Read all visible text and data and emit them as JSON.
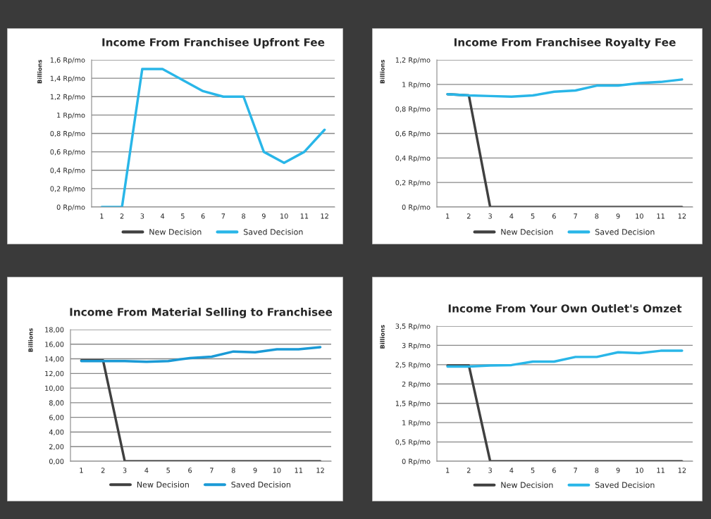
{
  "chart_data": [
    {
      "type": "line",
      "title": "Income From Franchisee Upfront Fee",
      "ylabel": "Billions",
      "categories": [
        "1",
        "2",
        "3",
        "4",
        "5",
        "6",
        "7",
        "8",
        "9",
        "10",
        "11",
        "12"
      ],
      "series": [
        {
          "name": "New Decision",
          "color": "#404040",
          "values": [
            null,
            null,
            null,
            null,
            null,
            null,
            null,
            null,
            null,
            null,
            null,
            null
          ]
        },
        {
          "name": "Saved Decision",
          "color": "#29b6e8",
          "values": [
            0,
            0,
            1.5,
            1.5,
            1.38,
            1.26,
            1.2,
            1.2,
            0.6,
            0.48,
            0.6,
            0.84
          ]
        }
      ],
      "ylim": [
        0,
        1.6
      ],
      "yticks": [
        {
          "value": 0,
          "label": "0 Rp/mo"
        },
        {
          "value": 0.2,
          "label": "0,2 Rp/mo"
        },
        {
          "value": 0.4,
          "label": "0,4 Rp/mo"
        },
        {
          "value": 0.6,
          "label": "0,6 Rp/mo"
        },
        {
          "value": 0.8,
          "label": "0,8 Rp/mo"
        },
        {
          "value": 1,
          "label": "1 Rp/mo"
        },
        {
          "value": 1.2,
          "label": "1,2 Rp/mo"
        },
        {
          "value": 1.4,
          "label": "1,4 Rp/mo"
        },
        {
          "value": 1.6,
          "label": "1,6 Rp/mo"
        }
      ],
      "grid": "y",
      "legend": "bottom"
    },
    {
      "type": "line",
      "title": "Income From Franchisee Royalty Fee",
      "ylabel": "Billions",
      "categories": [
        "1",
        "2",
        "3",
        "4",
        "5",
        "6",
        "7",
        "8",
        "9",
        "10",
        "11",
        "12"
      ],
      "series": [
        {
          "name": "New Decision",
          "color": "#404040",
          "values": [
            0.92,
            0.91,
            0,
            0,
            0,
            0,
            0,
            0,
            0,
            0,
            0,
            0
          ]
        },
        {
          "name": "Saved Decision",
          "color": "#29b6e8",
          "values": [
            0.92,
            0.91,
            0.905,
            0.9,
            0.91,
            0.94,
            0.95,
            0.99,
            0.99,
            1.01,
            1.02,
            1.04
          ]
        }
      ],
      "ylim": [
        0,
        1.2
      ],
      "yticks": [
        {
          "value": 0,
          "label": "0 Rp/mo"
        },
        {
          "value": 0.2,
          "label": "0,2 Rp/mo"
        },
        {
          "value": 0.4,
          "label": "0,4 Rp/mo"
        },
        {
          "value": 0.6,
          "label": "0,6 Rp/mo"
        },
        {
          "value": 0.8,
          "label": "0,8 Rp/mo"
        },
        {
          "value": 1,
          "label": "1 Rp/mo"
        },
        {
          "value": 1.2,
          "label": "1,2 Rp/mo"
        }
      ],
      "grid": "y",
      "legend": "bottom"
    },
    {
      "type": "line",
      "title": "Income From Material Selling to Franchisee",
      "ylabel": "Billions",
      "categories": [
        "1",
        "2",
        "3",
        "4",
        "5",
        "6",
        "7",
        "8",
        "9",
        "10",
        "11",
        "12"
      ],
      "series": [
        {
          "name": "New Decision",
          "color": "#404040",
          "values": [
            13.8,
            13.8,
            0,
            0,
            0,
            0,
            0,
            0,
            0,
            0,
            0,
            0
          ]
        },
        {
          "name": "Saved Decision",
          "color": "#1a9ad6",
          "values": [
            13.7,
            13.7,
            13.7,
            13.6,
            13.7,
            14.1,
            14.3,
            15.0,
            14.9,
            15.3,
            15.3,
            15.6
          ]
        }
      ],
      "ylim": [
        0,
        18
      ],
      "yticks": [
        {
          "value": 0,
          "label": "0,00"
        },
        {
          "value": 2,
          "label": "2,00"
        },
        {
          "value": 4,
          "label": "4,00"
        },
        {
          "value": 6,
          "label": "6,00"
        },
        {
          "value": 8,
          "label": "8,00"
        },
        {
          "value": 10,
          "label": "10,00"
        },
        {
          "value": 12,
          "label": "12,00"
        },
        {
          "value": 14,
          "label": "14,00"
        },
        {
          "value": 16,
          "label": "16,00"
        },
        {
          "value": 18,
          "label": "18,00"
        }
      ],
      "grid": "y",
      "legend": "bottom"
    },
    {
      "type": "line",
      "title": "Income From Your Own Outlet's Omzet",
      "ylabel": "Billions",
      "categories": [
        "1",
        "2",
        "3",
        "4",
        "5",
        "6",
        "7",
        "8",
        "9",
        "10",
        "11",
        "12"
      ],
      "series": [
        {
          "name": "New Decision",
          "color": "#404040",
          "values": [
            2.48,
            2.48,
            0,
            0,
            0,
            0,
            0,
            0,
            0,
            0,
            0,
            0
          ]
        },
        {
          "name": "Saved Decision",
          "color": "#29b6e8",
          "values": [
            2.45,
            2.45,
            2.48,
            2.49,
            2.58,
            2.58,
            2.7,
            2.7,
            2.82,
            2.8,
            2.86,
            2.86
          ]
        }
      ],
      "ylim": [
        0,
        3.5
      ],
      "yticks": [
        {
          "value": 0,
          "label": "0 Rp/mo"
        },
        {
          "value": 0.5,
          "label": "0,5 Rp/mo"
        },
        {
          "value": 1,
          "label": "1 Rp/mo"
        },
        {
          "value": 1.5,
          "label": "1,5 Rp/mo"
        },
        {
          "value": 2,
          "label": "2 Rp/mo"
        },
        {
          "value": 2.5,
          "label": "2,5 Rp/mo"
        },
        {
          "value": 3,
          "label": "3 Rp/mo"
        },
        {
          "value": 3.5,
          "label": "3,5 Rp/mo"
        }
      ],
      "grid": "y",
      "legend": "bottom"
    }
  ]
}
